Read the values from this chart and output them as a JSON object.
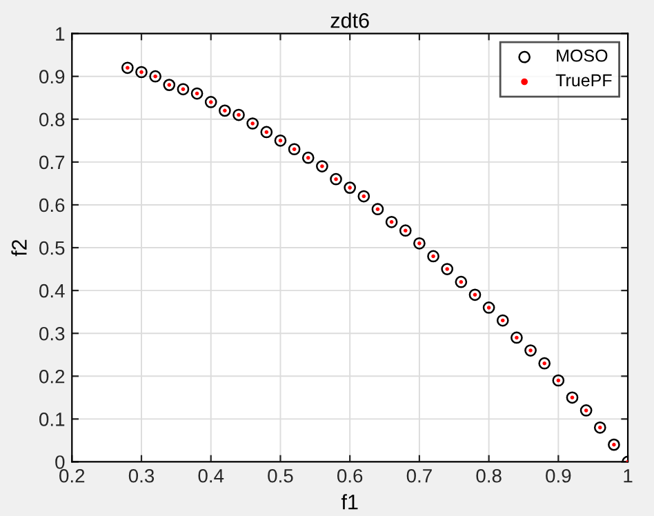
{
  "chart_data": {
    "type": "scatter",
    "title": "zdt6",
    "xlabel": "f1",
    "ylabel": "f2",
    "xlim": [
      0.2,
      1
    ],
    "ylim": [
      0,
      1
    ],
    "xticks": [
      0.2,
      0.3,
      0.4,
      0.5,
      0.6,
      0.7,
      0.8,
      0.9,
      1
    ],
    "yticks": [
      0,
      0.1,
      0.2,
      0.3,
      0.4,
      0.5,
      0.6,
      0.7,
      0.8,
      0.9,
      1
    ],
    "grid": true,
    "legend": "top right",
    "marker": "circle",
    "series": [
      {
        "name": "MOSO",
        "color": "#000000",
        "x": [
          0.28,
          0.3,
          0.32,
          0.34,
          0.36,
          0.38,
          0.4,
          0.42,
          0.44,
          0.46,
          0.48,
          0.5,
          0.52,
          0.54,
          0.56,
          0.58,
          0.6,
          0.62,
          0.64,
          0.66,
          0.68,
          0.7,
          0.72,
          0.74,
          0.76,
          0.78,
          0.8,
          0.82,
          0.84,
          0.86,
          0.88,
          0.9,
          0.92,
          0.94,
          0.96,
          0.98,
          1.0
        ],
        "values": [
          0.92,
          0.91,
          0.9,
          0.88,
          0.87,
          0.86,
          0.84,
          0.82,
          0.81,
          0.79,
          0.77,
          0.75,
          0.73,
          0.71,
          0.69,
          0.66,
          0.64,
          0.62,
          0.59,
          0.56,
          0.54,
          0.51,
          0.48,
          0.45,
          0.42,
          0.39,
          0.36,
          0.33,
          0.29,
          0.26,
          0.23,
          0.19,
          0.15,
          0.12,
          0.08,
          0.04,
          0.0
        ]
      },
      {
        "name": "TruePF",
        "color": "#ff0000",
        "x": [
          0.28,
          0.3,
          0.32,
          0.34,
          0.36,
          0.38,
          0.4,
          0.42,
          0.44,
          0.46,
          0.48,
          0.5,
          0.52,
          0.54,
          0.56,
          0.58,
          0.6,
          0.62,
          0.64,
          0.66,
          0.68,
          0.7,
          0.72,
          0.74,
          0.76,
          0.78,
          0.8,
          0.82,
          0.84,
          0.86,
          0.88,
          0.9,
          0.92,
          0.94,
          0.96,
          0.98,
          1.0
        ],
        "values": [
          0.92,
          0.91,
          0.9,
          0.88,
          0.87,
          0.86,
          0.84,
          0.82,
          0.81,
          0.79,
          0.77,
          0.75,
          0.73,
          0.71,
          0.69,
          0.66,
          0.64,
          0.62,
          0.59,
          0.56,
          0.54,
          0.51,
          0.48,
          0.45,
          0.42,
          0.39,
          0.36,
          0.33,
          0.29,
          0.26,
          0.23,
          0.19,
          0.15,
          0.12,
          0.08,
          0.04,
          0.0
        ]
      }
    ]
  }
}
